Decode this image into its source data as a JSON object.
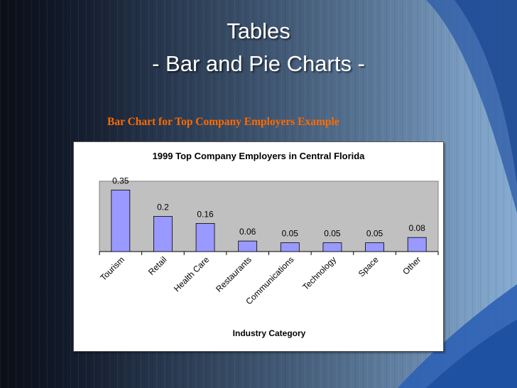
{
  "slide": {
    "title_line1": "Tables",
    "title_line2": "- Bar and Pie Charts -",
    "subtitle": "Bar Chart for Top Company Employers Example",
    "colors": {
      "subtitle": "#ff6a00",
      "bar_fill": "#9999ff",
      "plot_background": "#c0c0c0"
    }
  },
  "chart_data": {
    "type": "bar",
    "title": "1999 Top Company Employers in Central Florida",
    "xlabel": "Industry Category",
    "ylabel": "",
    "categories": [
      "Tourism",
      "Retail",
      "Health Care",
      "Restaurants",
      "Communications",
      "Technology",
      "Space",
      "Other"
    ],
    "values": [
      0.35,
      0.2,
      0.16,
      0.06,
      0.05,
      0.05,
      0.05,
      0.08
    ],
    "ylim": [
      0,
      0.4
    ],
    "grid": false,
    "legend": "none"
  }
}
